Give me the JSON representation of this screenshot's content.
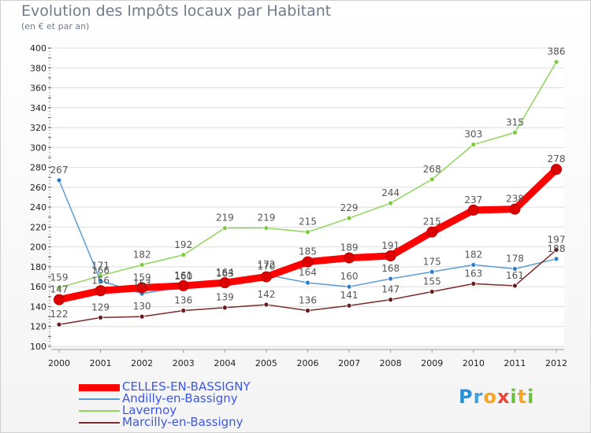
{
  "chart_data": {
    "type": "line",
    "title": "Evolution des Impôts locaux par Habitant",
    "subtitle": "(en € et par an)",
    "x": [
      "2000",
      "2001",
      "2002",
      "2003",
      "2004",
      "2005",
      "2006",
      "2007",
      "2008",
      "2009",
      "2010",
      "2011",
      "2012"
    ],
    "ylim": [
      100,
      400
    ],
    "yticks": [
      100,
      120,
      140,
      160,
      180,
      200,
      220,
      240,
      260,
      280,
      300,
      320,
      340,
      360,
      380,
      400
    ],
    "grid": "horizontal",
    "legend_position": "bottom-left",
    "series": [
      {
        "name": "CELLES-EN-BASSIGNY",
        "color": "#ff0000",
        "values": [
          147,
          156,
          159,
          161,
          164,
          170,
          185,
          189,
          191,
          215,
          237,
          238,
          278
        ]
      },
      {
        "name": "Andilly-en-Bassigny",
        "color": "#5b9bd5",
        "values": [
          267,
          166,
          153,
          160,
          163,
          172,
          164,
          160,
          168,
          175,
          182,
          178,
          188
        ]
      },
      {
        "name": "Lavernoy",
        "color": "#8fd45a",
        "values": [
          159,
          171,
          182,
          192,
          219,
          219,
          215,
          229,
          244,
          268,
          303,
          315,
          386
        ]
      },
      {
        "name": "Marcilly-en-Bassigny",
        "color": "#7a2a2a",
        "values": [
          122,
          129,
          130,
          136,
          139,
          142,
          136,
          141,
          147,
          155,
          163,
          161,
          197
        ]
      }
    ]
  },
  "logo": {
    "letters": [
      "P",
      "r",
      "o",
      "x",
      "i",
      "t",
      "i"
    ],
    "colors": [
      "#2a8fd8",
      "#3da0e0",
      "#f5a623",
      "#e8443a",
      "#6cbf3c",
      "#f5a623",
      "#6cbf3c"
    ]
  }
}
